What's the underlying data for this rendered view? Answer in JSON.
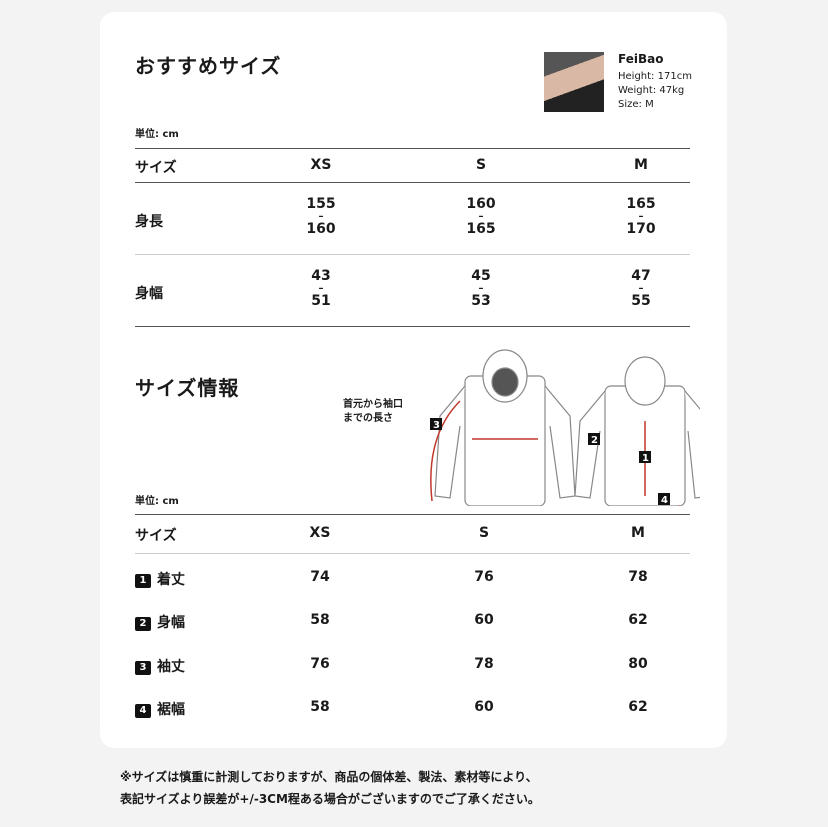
{
  "recommended": {
    "title": "おすすめサイズ",
    "unit": "単位: cm",
    "model": {
      "name": "FeiBao",
      "height": "Height: 171cm",
      "weight": "Weight: 47kg",
      "size": "Size: M"
    },
    "headers": [
      "サイズ",
      "XS",
      "S",
      "M"
    ],
    "rows": [
      {
        "label": "身長",
        "values": [
          [
            "155",
            "160"
          ],
          [
            "160",
            "165"
          ],
          [
            "165",
            "170"
          ]
        ]
      },
      {
        "label": "身幅",
        "values": [
          [
            "43",
            "51"
          ],
          [
            "45",
            "53"
          ],
          [
            "47",
            "55"
          ]
        ]
      }
    ],
    "dash": "–"
  },
  "info": {
    "title": "サイズ情報",
    "unit": "単位: cm",
    "diagram_note_1": "首元から袖口",
    "diagram_note_2": "までの長さ",
    "headers": [
      "サイズ",
      "XS",
      "S",
      "M"
    ],
    "rows": [
      {
        "num": "1",
        "label": "着丈",
        "values": [
          "74",
          "76",
          "78"
        ]
      },
      {
        "num": "2",
        "label": "身幅",
        "values": [
          "58",
          "60",
          "62"
        ]
      },
      {
        "num": "3",
        "label": "袖丈",
        "values": [
          "76",
          "78",
          "80"
        ]
      },
      {
        "num": "4",
        "label": "裾幅",
        "values": [
          "58",
          "60",
          "62"
        ]
      }
    ]
  },
  "footnote": {
    "line1": "※サイズは慎重に計測しておりますが、商品の個体差、製法、素材等により、",
    "line2": "表記サイズより誤差が+/-3CM程ある場合がございますのでご了承ください。"
  },
  "colors": {
    "accent": "#c0392b",
    "background": "#f3f3f3"
  }
}
